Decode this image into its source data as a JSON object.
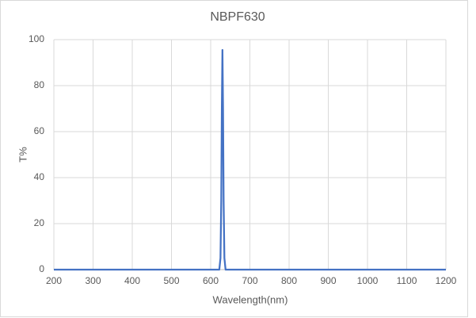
{
  "chart_data": {
    "type": "line",
    "title": "NBPF630",
    "x_label": "Wavelength(nm)",
    "y_label": "T%",
    "x": [
      200,
      600,
      622,
      625,
      627,
      628.5,
      630,
      631.5,
      633,
      635,
      638,
      1200
    ],
    "series": [
      {
        "name": "NBPF630",
        "color": "#4472c4",
        "values": [
          0,
          0,
          0,
          5,
          30,
          70,
          95.5,
          70,
          30,
          5,
          0,
          0
        ]
      }
    ],
    "xlim": [
      200,
      1200
    ],
    "xticks": [
      200,
      300,
      400,
      500,
      600,
      700,
      800,
      900,
      1000,
      1100,
      1200
    ],
    "ylim": [
      0,
      100
    ],
    "yticks": [
      0,
      20,
      40,
      60,
      80,
      100
    ],
    "grid": true
  }
}
